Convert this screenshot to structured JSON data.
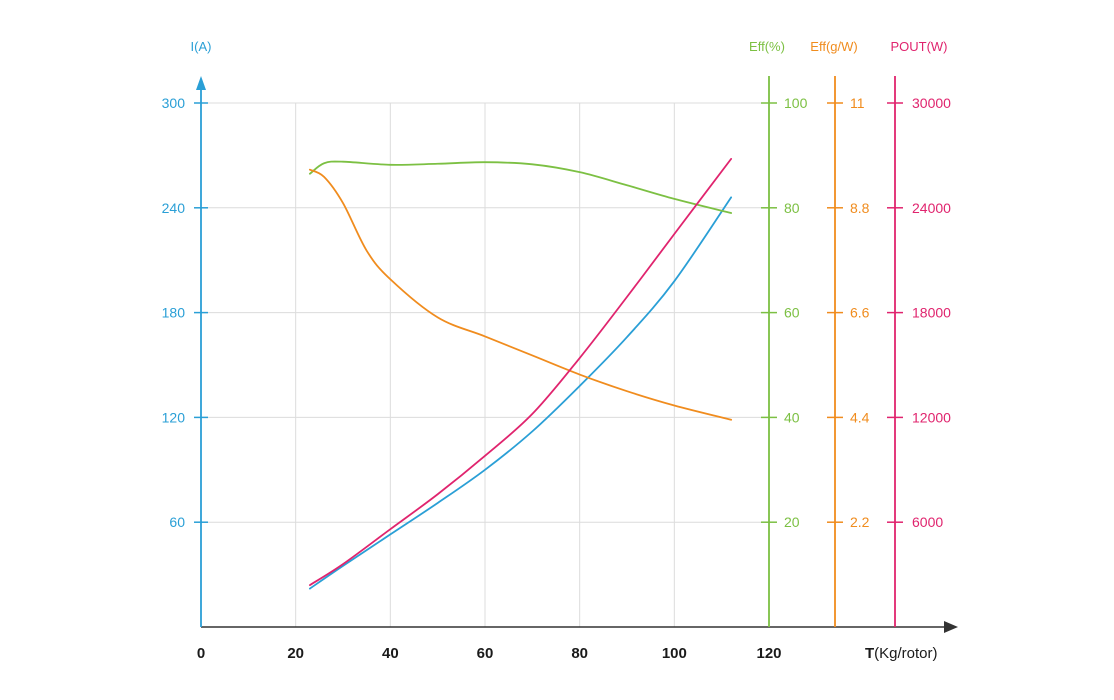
{
  "chart_data": {
    "type": "line",
    "x_axis": {
      "title_bold": "T",
      "title_rest": "(Kg/rotor)",
      "range": [
        0,
        120
      ],
      "ticks": [
        0,
        20,
        40,
        60,
        80,
        100,
        120
      ],
      "tick_labels": [
        "0",
        "20",
        "40",
        "60",
        "80",
        "100",
        "120"
      ],
      "grid": true
    },
    "y_axes": [
      {
        "id": "current",
        "title": "I(A)",
        "color": "#2a9fd6",
        "side": "left",
        "range": [
          0,
          300
        ],
        "ticks": [
          60,
          120,
          180,
          240,
          300
        ],
        "tick_labels": [
          "60",
          "120",
          "180",
          "240",
          "300"
        ]
      },
      {
        "id": "eff_pct",
        "title": "Eff(%)",
        "color": "#7cc043",
        "side": "right",
        "range": [
          0,
          100
        ],
        "ticks": [
          20,
          40,
          60,
          80,
          100
        ],
        "tick_labels": [
          "20",
          "40",
          "60",
          "80",
          "100"
        ]
      },
      {
        "id": "eff_gw",
        "title": "Eff(g/W)",
        "color": "#f08c1e",
        "side": "right",
        "range": [
          0,
          11
        ],
        "ticks": [
          2.2,
          4.4,
          6.6,
          8.8,
          11
        ],
        "tick_labels": [
          "2.2",
          "4.4",
          "6.6",
          "8.8",
          "11"
        ]
      },
      {
        "id": "pout",
        "title": "POUT(W)",
        "color": "#e0246e",
        "side": "right",
        "range": [
          0,
          30000
        ],
        "ticks": [
          6000,
          12000,
          18000,
          24000,
          30000
        ],
        "tick_labels": [
          "6000",
          "12000",
          "18000",
          "24000",
          "30000"
        ]
      }
    ],
    "series": [
      {
        "axis": "current",
        "color": "#2a9fd6",
        "x": [
          23,
          30,
          40,
          50,
          60,
          70,
          80,
          90,
          100,
          112
        ],
        "y": [
          22,
          35,
          53,
          71,
          90,
          112,
          138,
          166,
          198,
          246
        ]
      },
      {
        "axis": "eff_pct",
        "color": "#7cc043",
        "x": [
          23,
          26,
          30,
          40,
          50,
          60,
          70,
          80,
          90,
          100,
          112
        ],
        "y": [
          86.5,
          88.5,
          88.8,
          88.2,
          88.4,
          88.7,
          88.3,
          86.8,
          84.3,
          81.7,
          79
        ]
      },
      {
        "axis": "eff_gw",
        "color": "#f08c1e",
        "x": [
          23,
          26,
          30,
          35,
          40,
          50,
          60,
          70,
          80,
          90,
          100,
          112
        ],
        "y": [
          9.6,
          9.45,
          8.9,
          7.9,
          7.3,
          6.5,
          6.1,
          5.7,
          5.3,
          4.95,
          4.65,
          4.35
        ]
      },
      {
        "axis": "pout",
        "color": "#e0246e",
        "x": [
          23,
          30,
          40,
          50,
          60,
          70,
          80,
          90,
          100,
          112
        ],
        "y": [
          2400,
          3600,
          5600,
          7600,
          9800,
          12200,
          15400,
          18900,
          22500,
          26800
        ]
      }
    ]
  }
}
